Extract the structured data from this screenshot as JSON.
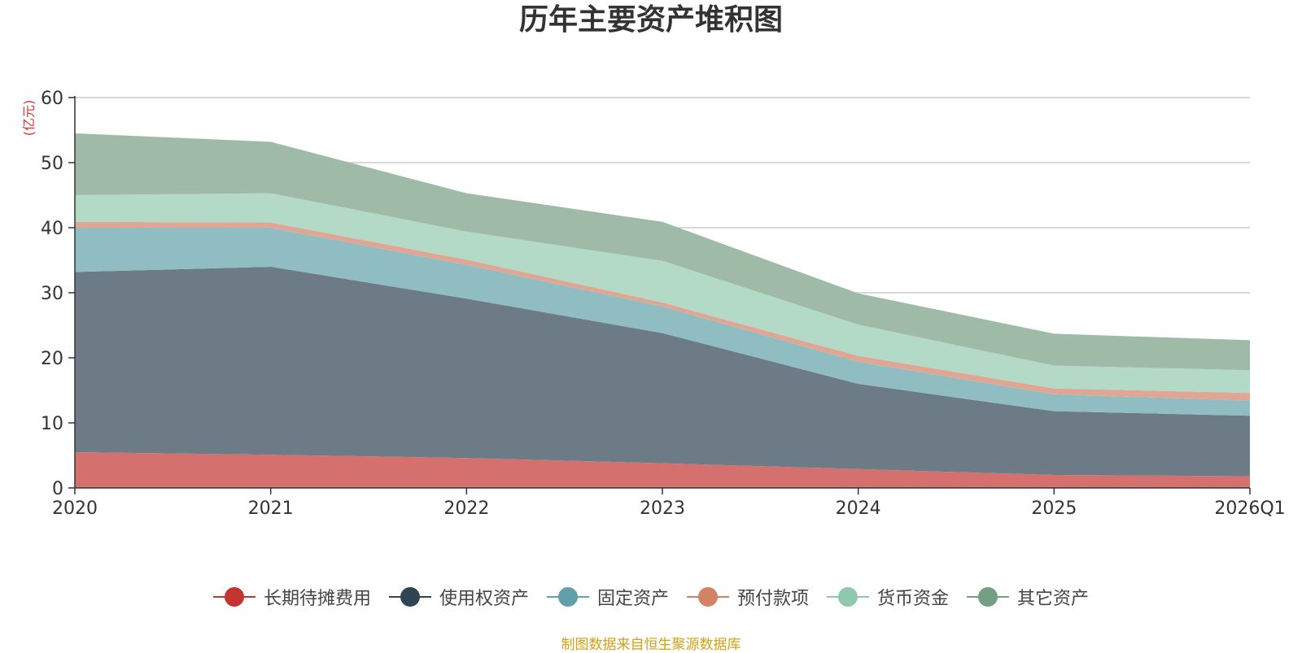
{
  "chart_data": {
    "type": "area",
    "stacked": true,
    "title": "历年主要资产堆积图",
    "unit_label": "(亿元)",
    "categories": [
      "2020",
      "2021",
      "2022",
      "2023",
      "2024",
      "2025",
      "2026Q1"
    ],
    "ylim": [
      0,
      60
    ],
    "yticks": [
      "0",
      "10",
      "20",
      "30",
      "40",
      "50",
      "60"
    ],
    "grid": true,
    "legend_position": "bottom",
    "series": [
      {
        "name": "长期待摊费用",
        "color": "#c23531",
        "fill": "#d4716e",
        "values": [
          5.5,
          5.1,
          4.6,
          3.8,
          2.9,
          2.0,
          1.8
        ]
      },
      {
        "name": "使用权资产",
        "color": "#2f4554",
        "fill": "#6d7b86",
        "values": [
          27.7,
          28.9,
          24.5,
          20.0,
          13.1,
          9.8,
          9.3
        ]
      },
      {
        "name": "固定资产",
        "color": "#61a0a8",
        "fill": "#90bdc2",
        "values": [
          6.8,
          6.0,
          5.2,
          4.1,
          3.4,
          2.6,
          2.3
        ]
      },
      {
        "name": "预付款项",
        "color": "#d48265",
        "fill": "#e1a593",
        "values": [
          0.9,
          0.8,
          0.8,
          0.6,
          0.9,
          0.9,
          1.2
        ]
      },
      {
        "name": "货币资金",
        "color": "#91c7ae",
        "fill": "#b3d9c7",
        "values": [
          4.1,
          4.5,
          4.3,
          6.4,
          4.8,
          3.5,
          3.5
        ]
      },
      {
        "name": "其它资产",
        "color": "#749f83",
        "fill": "#9fbba8",
        "values": [
          9.5,
          7.9,
          5.9,
          6.0,
          4.8,
          4.9,
          4.6
        ]
      }
    ]
  },
  "source_note": "制图数据来自恒生聚源数据库"
}
